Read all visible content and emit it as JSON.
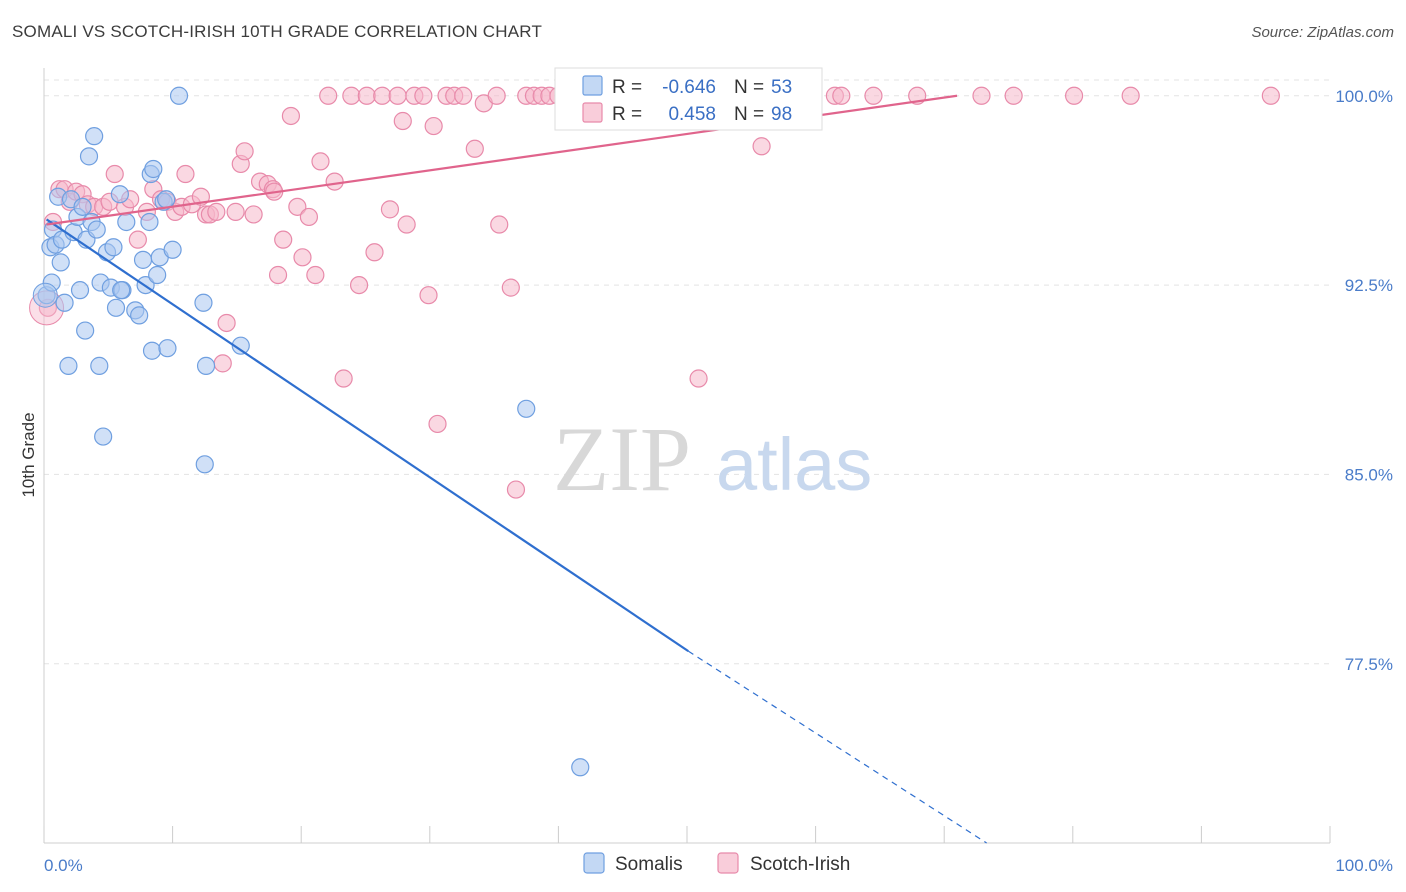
{
  "title": "SOMALI VS SCOTCH-IRISH 10TH GRADE CORRELATION CHART",
  "source": "Source: ZipAtlas.com",
  "watermark": {
    "zip": "ZIP",
    "atlas": "atlas"
  },
  "colors": {
    "blue": "#6f9fe0",
    "blue_fill": "#a9c7f0",
    "blue_line": "#2f6fcf",
    "pink": "#e88aaa",
    "pink_fill": "#f6b8cb",
    "pink_line": "#e0648c",
    "grid": "#e3e3e3",
    "tick_label": "#4a7cc9"
  },
  "legend_stats": [
    {
      "series": "Somalis",
      "r_label": "R =",
      "r_value": "-0.646",
      "n_label": "N =",
      "n_value": "53",
      "color": "blue"
    },
    {
      "series": "Scotch-Irish",
      "r_label": "R =",
      "r_value": "0.458",
      "n_label": "N =",
      "n_value": "98",
      "color": "pink"
    }
  ],
  "chart_data": {
    "type": "scatter",
    "title": "SOMALI VS SCOTCH-IRISH 10TH GRADE CORRELATION CHART",
    "xlabel": "",
    "ylabel": "10th Grade",
    "xlim": [
      0,
      100
    ],
    "ylim": [
      70.4,
      101.1
    ],
    "x_tick_labels": [
      "0.0%",
      "100.0%"
    ],
    "y_ticks": [
      77.5,
      85.0,
      92.5,
      100.0
    ],
    "y_tick_labels": [
      "77.5%",
      "85.0%",
      "92.5%",
      "100.0%"
    ],
    "grid": "horizontal dashed",
    "legend_position": "bottom",
    "series": [
      {
        "name": "Somalis",
        "color": "blue",
        "r": -0.646,
        "n": 53,
        "trend": {
          "x": [
            0.2,
            50.1,
            73.3
          ],
          "y": [
            95.1,
            78.0,
            70.4
          ]
        },
        "points": [
          [
            0.2,
            92.1
          ],
          [
            0.5,
            94.0
          ],
          [
            0.7,
            94.7
          ],
          [
            0.9,
            94.1
          ],
          [
            1.1,
            96.0
          ],
          [
            1.3,
            93.4
          ],
          [
            1.4,
            94.3
          ],
          [
            1.6,
            91.8
          ],
          [
            1.9,
            89.3
          ],
          [
            2.1,
            95.9
          ],
          [
            2.3,
            94.6
          ],
          [
            2.6,
            95.2
          ],
          [
            2.8,
            92.3
          ],
          [
            3.0,
            95.6
          ],
          [
            3.3,
            94.3
          ],
          [
            3.5,
            97.6
          ],
          [
            3.7,
            95.0
          ],
          [
            3.9,
            98.4
          ],
          [
            4.1,
            94.7
          ],
          [
            4.4,
            92.6
          ],
          [
            4.3,
            89.3
          ],
          [
            4.6,
            86.5
          ],
          [
            4.9,
            93.8
          ],
          [
            5.2,
            92.4
          ],
          [
            5.4,
            94.0
          ],
          [
            5.6,
            91.6
          ],
          [
            5.9,
            96.1
          ],
          [
            6.1,
            92.3
          ],
          [
            6.4,
            95.0
          ],
          [
            7.1,
            91.5
          ],
          [
            7.4,
            91.3
          ],
          [
            7.7,
            93.5
          ],
          [
            7.9,
            92.5
          ],
          [
            8.2,
            95.0
          ],
          [
            8.4,
            89.9
          ],
          [
            8.3,
            96.9
          ],
          [
            8.5,
            97.1
          ],
          [
            8.8,
            92.9
          ],
          [
            9.0,
            93.6
          ],
          [
            9.3,
            95.8
          ],
          [
            9.5,
            95.9
          ],
          [
            9.6,
            90.0
          ],
          [
            10.0,
            93.9
          ],
          [
            10.5,
            100.0
          ],
          [
            12.4,
            91.8
          ],
          [
            12.6,
            89.3
          ],
          [
            12.5,
            85.4
          ],
          [
            15.3,
            90.1
          ],
          [
            37.5,
            87.6
          ],
          [
            41.7,
            73.4
          ],
          [
            0.6,
            92.6
          ],
          [
            3.2,
            90.7
          ],
          [
            6.0,
            92.3
          ]
        ]
      },
      {
        "name": "Scotch-Irish",
        "color": "pink",
        "r": 0.458,
        "n": 98,
        "trend": {
          "x": [
            0.2,
            71.0
          ],
          "y": [
            94.9,
            100.0
          ]
        },
        "points": [
          [
            0.3,
            91.6
          ],
          [
            0.7,
            95.0
          ],
          [
            1.2,
            96.3
          ],
          [
            1.6,
            96.3
          ],
          [
            2.0,
            95.8
          ],
          [
            2.5,
            96.2
          ],
          [
            3.0,
            96.1
          ],
          [
            3.4,
            95.7
          ],
          [
            3.9,
            95.6
          ],
          [
            4.6,
            95.6
          ],
          [
            5.1,
            95.8
          ],
          [
            5.5,
            96.9
          ],
          [
            6.3,
            95.6
          ],
          [
            6.7,
            95.9
          ],
          [
            7.3,
            94.3
          ],
          [
            8.0,
            95.4
          ],
          [
            8.5,
            96.3
          ],
          [
            9.1,
            95.9
          ],
          [
            9.6,
            95.8
          ],
          [
            10.2,
            95.4
          ],
          [
            10.7,
            95.6
          ],
          [
            11.0,
            96.9
          ],
          [
            11.5,
            95.7
          ],
          [
            12.2,
            96.0
          ],
          [
            12.6,
            95.3
          ],
          [
            12.9,
            95.3
          ],
          [
            13.4,
            95.4
          ],
          [
            13.9,
            89.4
          ],
          [
            14.2,
            91.0
          ],
          [
            14.9,
            95.4
          ],
          [
            15.3,
            97.3
          ],
          [
            15.6,
            97.8
          ],
          [
            16.3,
            95.3
          ],
          [
            16.8,
            96.6
          ],
          [
            17.4,
            96.5
          ],
          [
            17.8,
            96.3
          ],
          [
            17.9,
            96.2
          ],
          [
            18.2,
            92.9
          ],
          [
            18.6,
            94.3
          ],
          [
            19.2,
            99.2
          ],
          [
            19.7,
            95.6
          ],
          [
            20.1,
            93.6
          ],
          [
            20.6,
            95.2
          ],
          [
            21.1,
            92.9
          ],
          [
            21.5,
            97.4
          ],
          [
            22.1,
            100.0
          ],
          [
            22.6,
            96.6
          ],
          [
            23.3,
            88.8
          ],
          [
            23.9,
            100.0
          ],
          [
            24.5,
            92.5
          ],
          [
            25.1,
            100.0
          ],
          [
            25.7,
            93.8
          ],
          [
            26.3,
            100.0
          ],
          [
            26.9,
            95.5
          ],
          [
            27.5,
            100.0
          ],
          [
            27.9,
            99.0
          ],
          [
            28.2,
            94.9
          ],
          [
            28.8,
            100.0
          ],
          [
            29.5,
            100.0
          ],
          [
            29.9,
            92.1
          ],
          [
            30.3,
            98.8
          ],
          [
            30.6,
            87.0
          ],
          [
            31.3,
            100.0
          ],
          [
            31.9,
            100.0
          ],
          [
            32.6,
            100.0
          ],
          [
            33.5,
            97.9
          ],
          [
            34.2,
            99.7
          ],
          [
            35.2,
            100.0
          ],
          [
            35.4,
            94.9
          ],
          [
            36.3,
            92.4
          ],
          [
            36.7,
            84.4
          ],
          [
            37.5,
            100.0
          ],
          [
            38.1,
            100.0
          ],
          [
            38.7,
            100.0
          ],
          [
            39.3,
            100.0
          ],
          [
            40.0,
            100.0
          ],
          [
            40.9,
            100.0
          ],
          [
            42.1,
            100.0
          ],
          [
            44.1,
            100.0
          ],
          [
            45.5,
            100.0
          ],
          [
            46.9,
            100.0
          ],
          [
            50.4,
            100.0
          ],
          [
            50.9,
            88.8
          ],
          [
            52.1,
            100.0
          ],
          [
            53.4,
            100.0
          ],
          [
            55.8,
            98.0
          ],
          [
            56.4,
            100.0
          ],
          [
            57.8,
            100.0
          ],
          [
            59.2,
            100.0
          ],
          [
            61.5,
            100.0
          ],
          [
            62.0,
            100.0
          ],
          [
            64.5,
            100.0
          ],
          [
            67.9,
            100.0
          ],
          [
            72.9,
            100.0
          ],
          [
            75.4,
            100.0
          ],
          [
            80.1,
            100.0
          ],
          [
            84.5,
            100.0
          ],
          [
            95.4,
            100.0
          ]
        ]
      }
    ]
  }
}
